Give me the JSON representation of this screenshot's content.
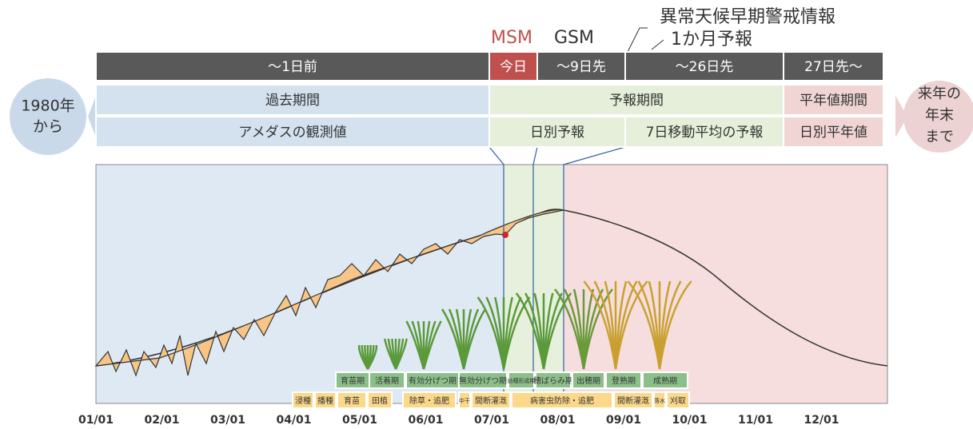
{
  "header": {
    "msm": "MSM",
    "gsm": "GSM",
    "early_warning": "異常天候早期警戒情報",
    "one_month": "1か月予報"
  },
  "timeline": [
    "～1日前",
    "今日",
    "～9日先",
    "～26日先",
    "27日先～"
  ],
  "periods": [
    "過去期間",
    "予報期間",
    "平年値期間"
  ],
  "sources": [
    "アメダスの観測値",
    "日別予報",
    "7日移動平均の予報",
    "日別平年値"
  ],
  "left_note": [
    "1980年",
    "から"
  ],
  "right_note": [
    "来年の",
    "年末",
    "まで"
  ],
  "months": [
    "01/01",
    "02/01",
    "03/01",
    "04/01",
    "05/01",
    "06/01",
    "07/01",
    "08/01",
    "09/01",
    "10/01",
    "11/01",
    "12/01"
  ],
  "stages": [
    "育苗期",
    "活着期",
    "有効分げつ期",
    "無効分げつ期",
    "幼穂形成期",
    "穂ばらみ期",
    "出穂期",
    "登熟期",
    "成熟期"
  ],
  "tasks": [
    "浸種",
    "播種",
    "育苗",
    "田植",
    "除草・追肥",
    "中干",
    "間断灌漑",
    "病害虫防除・追肥",
    "間断灌漑",
    "落水",
    "刈取"
  ]
}
